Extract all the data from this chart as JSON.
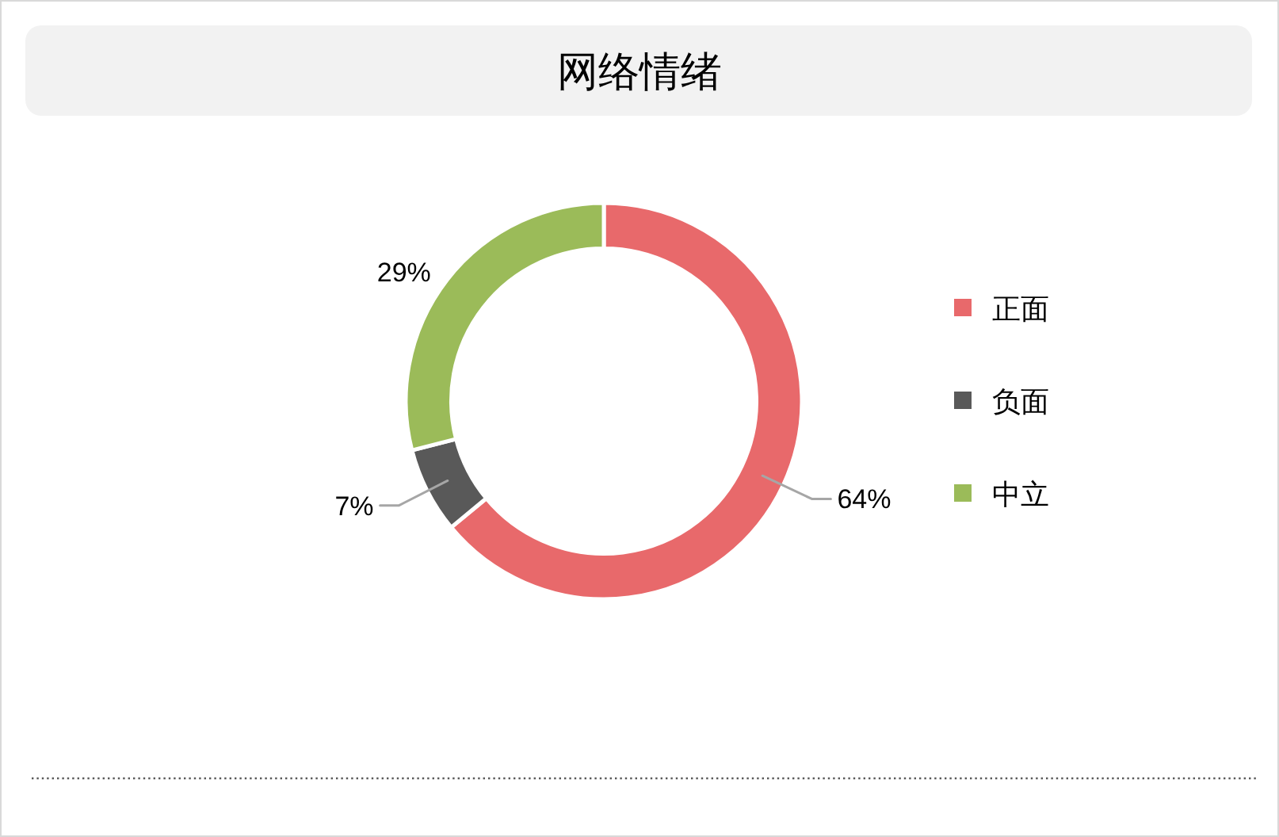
{
  "chart_data": {
    "type": "donut",
    "title": "网络情绪",
    "categories": [
      "正面",
      "负面",
      "中立"
    ],
    "values": [
      64,
      7,
      29
    ],
    "colors": [
      "#e8696b",
      "#595959",
      "#9bbb59"
    ],
    "value_labels": [
      "64%",
      "7%",
      "29%"
    ],
    "legend": "right"
  }
}
